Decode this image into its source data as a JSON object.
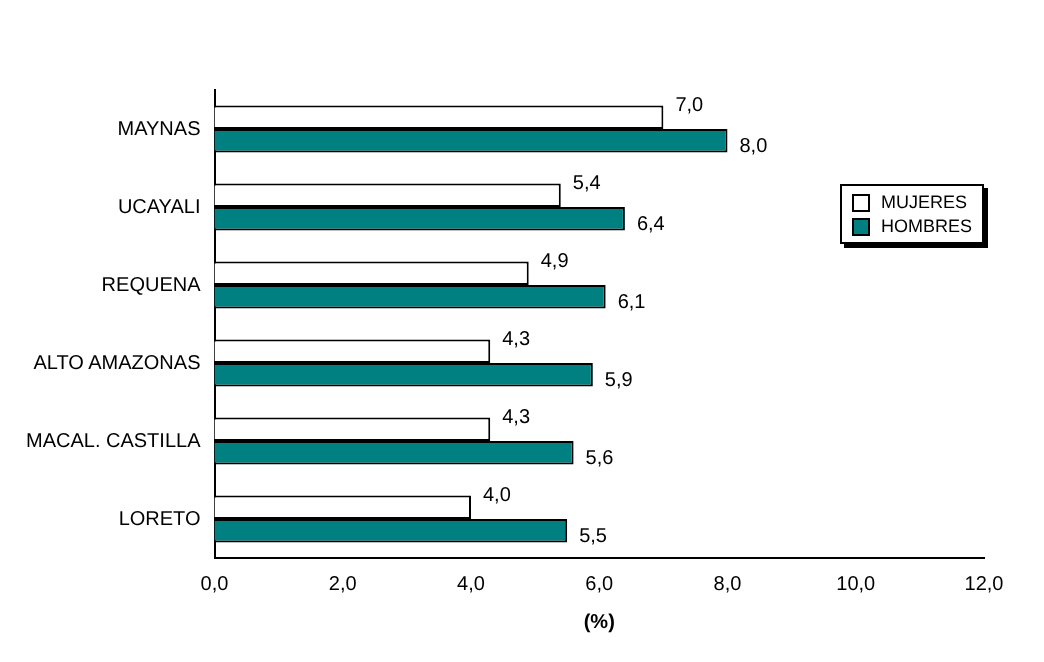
{
  "chart_data": {
    "type": "bar",
    "orientation": "horizontal",
    "xlabel": "(%)",
    "categories": [
      "MAYNAS",
      "UCAYALI",
      "REQUENA",
      "ALTO AMAZONAS",
      "MACAL. CASTILLA",
      "LORETO"
    ],
    "series": [
      {
        "name": "MUJERES",
        "color": "#ffffff",
        "values": [
          7.0,
          5.4,
          4.9,
          4.3,
          4.3,
          4.0
        ],
        "value_labels": [
          "7,0",
          "5,4",
          "4,9",
          "4,3",
          "4,3",
          "4,0"
        ]
      },
      {
        "name": "HOMBRES",
        "color": "#008080",
        "values": [
          8.0,
          6.4,
          6.1,
          5.9,
          5.6,
          5.5
        ],
        "value_labels": [
          "8,0",
          "6,4",
          "6,1",
          "5,9",
          "5,6",
          "5,5"
        ]
      }
    ],
    "xlim": [
      0,
      12
    ],
    "xticks": [
      {
        "value": 0,
        "label": "0,0"
      },
      {
        "value": 2,
        "label": "2,0"
      },
      {
        "value": 4,
        "label": "4,0"
      },
      {
        "value": 6,
        "label": "6,0"
      },
      {
        "value": 8,
        "label": "8,0"
      },
      {
        "value": 10,
        "label": "10,0"
      },
      {
        "value": 12,
        "label": "12,0"
      }
    ],
    "grid": false,
    "legend": "right"
  }
}
